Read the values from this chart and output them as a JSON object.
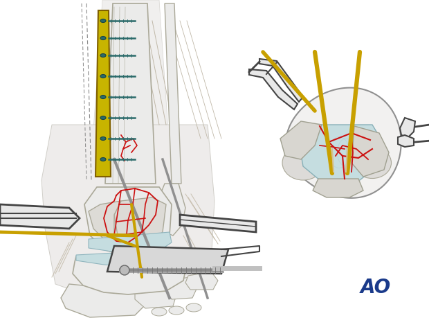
{
  "bg_color": "#ffffff",
  "ao_text": "AO",
  "ao_color": "#1a3a8a",
  "ao_fontsize": 20,
  "plate_color": "#c8b400",
  "plate_screws_color": "#2a6a6a",
  "bone_fill": "#ebebea",
  "bone_fill2": "#dddbd6",
  "bone_edge": "#aaa898",
  "cartilage_fill": "#c5dde0",
  "red_fracture": "#cc1010",
  "gold_wire": "#c8a000",
  "bone_wire": "#d4c090",
  "dark_gray": "#555555",
  "medium_gray": "#888888",
  "light_gray": "#cccccc",
  "retractor_fill": "#e8e8e8",
  "retractor_color": "#444444",
  "screw_color": "#999999",
  "tissue_color": "#d8d0c0",
  "tissue_line": "#c0b8a8"
}
